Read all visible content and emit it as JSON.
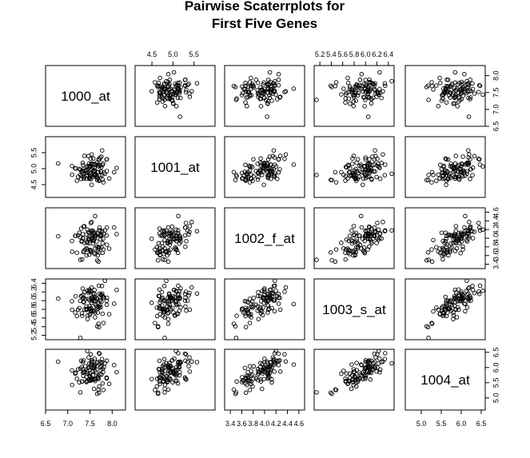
{
  "chart_data": {
    "type": "scatter-matrix",
    "title_lines": [
      "Pairwise  Scaterrplots for",
      "First Five Genes"
    ],
    "variables": [
      "1000_at",
      "1001_at",
      "1002_f_at",
      "1003_s_at",
      "1004_at"
    ],
    "axes": [
      {
        "name": "1000_at",
        "range": [
          6.5,
          8.3
        ],
        "ticks": [
          6.5,
          7.0,
          7.5,
          8.0
        ],
        "tick_labels": [
          "6.5",
          "7.0",
          "7.5",
          "8.0"
        ],
        "center": 7.55,
        "spread": 0.22
      },
      {
        "name": "1001_at",
        "range": [
          4.1,
          6.0
        ],
        "ticks": [
          4.5,
          5.0,
          5.5
        ],
        "tick_labels": [
          "4.5",
          "5.0",
          "5.5"
        ],
        "center": 4.95,
        "spread": 0.22
      },
      {
        "name": "1002_f_at",
        "range": [
          3.3,
          4.7
        ],
        "ticks": [
          3.4,
          3.6,
          3.8,
          4.0,
          4.2,
          4.4,
          4.6
        ],
        "tick_labels": [
          "3.4",
          "3.6",
          "3.8",
          "4.0",
          "4.2",
          "4.4",
          "4.6"
        ],
        "center": 3.95,
        "spread": 0.2
      },
      {
        "name": "1003_s_at",
        "range": [
          5.1,
          6.5
        ],
        "ticks": [
          5.2,
          5.4,
          5.6,
          5.8,
          6.0,
          6.2,
          6.4
        ],
        "tick_labels": [
          "5.2",
          "5.4",
          "5.6",
          "5.8",
          "6.0",
          "6.2",
          "6.4"
        ],
        "center": 5.95,
        "spread": 0.22
      },
      {
        "name": "1004_at",
        "range": [
          4.6,
          6.6
        ],
        "ticks": [
          5.0,
          5.5,
          6.0,
          6.5
        ],
        "tick_labels": [
          "5.0",
          "5.5",
          "6.0",
          "6.5"
        ],
        "center": 5.85,
        "spread": 0.28
      }
    ],
    "axis_label_positions": {
      "top": [
        1,
        3
      ],
      "bottom": [
        0,
        2,
        4
      ],
      "left": [
        1,
        3
      ],
      "right": [
        0,
        2,
        4
      ]
    },
    "correlation": [
      [
        1.0,
        0.05,
        0.05,
        0.15,
        0.05
      ],
      [
        0.05,
        1.0,
        0.45,
        0.35,
        0.45
      ],
      [
        0.05,
        0.45,
        1.0,
        0.55,
        0.65
      ],
      [
        0.15,
        0.35,
        0.55,
        1.0,
        0.7
      ],
      [
        0.05,
        0.45,
        0.65,
        0.7,
        1.0
      ]
    ],
    "n_points": 100
  }
}
